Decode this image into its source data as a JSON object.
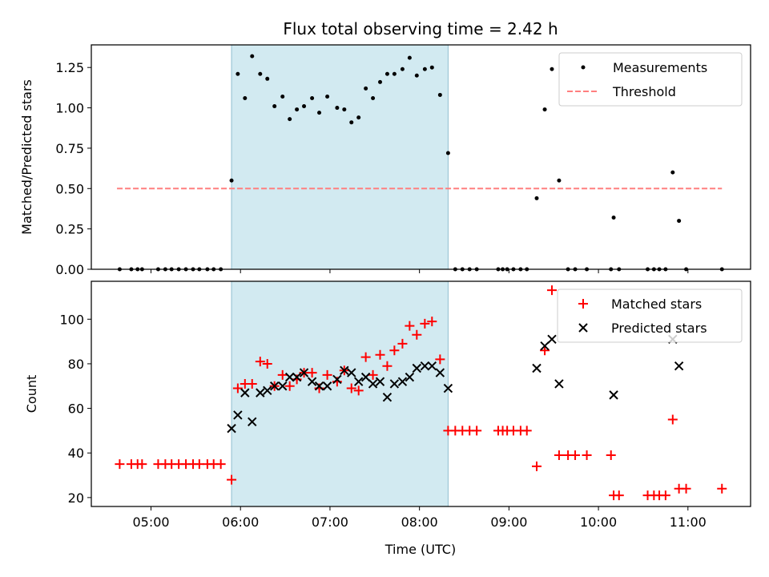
{
  "chart_data": [
    {
      "type": "scatter",
      "title": "Flux total observing time = 2.42 h",
      "ylabel": "Matched/Predicted stars",
      "xlabel": "",
      "xlim": [
        4.333,
        11.7
      ],
      "ylim": [
        0,
        1.39
      ],
      "ytick_labels": [
        "0.00",
        "0.25",
        "0.50",
        "0.75",
        "1.00",
        "1.25"
      ],
      "yticks": [
        0,
        0.25,
        0.5,
        0.75,
        1.0,
        1.25
      ],
      "legend_position": "upper-right",
      "shaded_interval": [
        5.9,
        8.32
      ],
      "shade_color": "#add8e6",
      "series": [
        {
          "name": "Measurements",
          "marker": "dot",
          "color": "#000000",
          "points": [
            [
              4.65,
              0.0
            ],
            [
              4.78,
              0.0
            ],
            [
              4.85,
              0.0
            ],
            [
              4.9,
              0.0
            ],
            [
              5.08,
              0.0
            ],
            [
              5.16,
              0.0
            ],
            [
              5.23,
              0.0
            ],
            [
              5.31,
              0.0
            ],
            [
              5.39,
              0.0
            ],
            [
              5.47,
              0.0
            ],
            [
              5.54,
              0.0
            ],
            [
              5.63,
              0.0
            ],
            [
              5.7,
              0.0
            ],
            [
              5.78,
              0.0
            ],
            [
              5.9,
              0.55
            ],
            [
              5.97,
              1.21
            ],
            [
              6.05,
              1.06
            ],
            [
              6.13,
              1.32
            ],
            [
              6.22,
              1.21
            ],
            [
              6.3,
              1.18
            ],
            [
              6.38,
              1.01
            ],
            [
              6.47,
              1.07
            ],
            [
              6.55,
              0.93
            ],
            [
              6.63,
              0.99
            ],
            [
              6.71,
              1.01
            ],
            [
              6.8,
              1.06
            ],
            [
              6.88,
              0.97
            ],
            [
              6.97,
              1.07
            ],
            [
              7.08,
              1.0
            ],
            [
              7.16,
              0.99
            ],
            [
              7.24,
              0.91
            ],
            [
              7.32,
              0.94
            ],
            [
              7.4,
              1.12
            ],
            [
              7.48,
              1.06
            ],
            [
              7.56,
              1.16
            ],
            [
              7.64,
              1.21
            ],
            [
              7.72,
              1.21
            ],
            [
              7.81,
              1.24
            ],
            [
              7.89,
              1.31
            ],
            [
              7.97,
              1.2
            ],
            [
              8.06,
              1.24
            ],
            [
              8.14,
              1.25
            ],
            [
              8.23,
              1.08
            ],
            [
              8.32,
              0.72
            ],
            [
              8.4,
              0.0
            ],
            [
              8.48,
              0.0
            ],
            [
              8.56,
              0.0
            ],
            [
              8.64,
              0.0
            ],
            [
              8.88,
              0.0
            ],
            [
              8.93,
              0.0
            ],
            [
              8.98,
              0.0
            ],
            [
              9.05,
              0.0
            ],
            [
              9.13,
              0.0
            ],
            [
              9.2,
              0.0
            ],
            [
              9.31,
              0.44
            ],
            [
              9.4,
              0.99
            ],
            [
              9.48,
              1.24
            ],
            [
              9.56,
              0.55
            ],
            [
              9.66,
              0.0
            ],
            [
              9.74,
              0.0
            ],
            [
              9.87,
              0.0
            ],
            [
              10.14,
              0.0
            ],
            [
              10.17,
              0.32
            ],
            [
              10.23,
              0.0
            ],
            [
              10.55,
              0.0
            ],
            [
              10.62,
              0.0
            ],
            [
              10.68,
              0.0
            ],
            [
              10.75,
              0.0
            ],
            [
              10.83,
              0.6
            ],
            [
              10.9,
              0.3
            ],
            [
              10.98,
              0.0
            ],
            [
              11.38,
              0.0
            ]
          ]
        },
        {
          "name": "Threshold",
          "marker": "dashed-line",
          "color": "#ff7f7f",
          "points": [
            [
              4.62,
              0.5
            ],
            [
              11.38,
              0.5
            ]
          ]
        }
      ]
    },
    {
      "type": "scatter",
      "title": "",
      "ylabel": "Count",
      "xlabel": "Time (UTC)",
      "xlim": [
        4.333,
        11.7
      ],
      "ylim": [
        16,
        117
      ],
      "yticks": [
        20,
        40,
        60,
        80,
        100
      ],
      "ytick_labels": [
        "20",
        "40",
        "60",
        "80",
        "100"
      ],
      "xticks": [
        5,
        6,
        7,
        8,
        9,
        10,
        11
      ],
      "xtick_labels": [
        "05:00",
        "06:00",
        "07:00",
        "08:00",
        "09:00",
        "10:00",
        "11:00"
      ],
      "legend_position": "upper-right",
      "shaded_interval": [
        5.9,
        8.32
      ],
      "shade_color": "#add8e6",
      "series": [
        {
          "name": "Matched stars",
          "marker": "plus",
          "color": "#ff0000",
          "points": [
            [
              4.65,
              35
            ],
            [
              4.78,
              35
            ],
            [
              4.85,
              35
            ],
            [
              4.9,
              35
            ],
            [
              5.08,
              35
            ],
            [
              5.16,
              35
            ],
            [
              5.23,
              35
            ],
            [
              5.31,
              35
            ],
            [
              5.39,
              35
            ],
            [
              5.47,
              35
            ],
            [
              5.54,
              35
            ],
            [
              5.63,
              35
            ],
            [
              5.7,
              35
            ],
            [
              5.78,
              35
            ],
            [
              5.9,
              28
            ],
            [
              5.97,
              69
            ],
            [
              6.05,
              71
            ],
            [
              6.13,
              71
            ],
            [
              6.22,
              81
            ],
            [
              6.3,
              80
            ],
            [
              6.38,
              70
            ],
            [
              6.47,
              75
            ],
            [
              6.55,
              70
            ],
            [
              6.63,
              73
            ],
            [
              6.71,
              76
            ],
            [
              6.8,
              76
            ],
            [
              6.88,
              69
            ],
            [
              6.97,
              75
            ],
            [
              7.08,
              72
            ],
            [
              7.16,
              77
            ],
            [
              7.24,
              69
            ],
            [
              7.32,
              68
            ],
            [
              7.4,
              83
            ],
            [
              7.48,
              75
            ],
            [
              7.56,
              84
            ],
            [
              7.64,
              79
            ],
            [
              7.72,
              86
            ],
            [
              7.81,
              89
            ],
            [
              7.89,
              97
            ],
            [
              7.97,
              93
            ],
            [
              8.06,
              98
            ],
            [
              8.14,
              99
            ],
            [
              8.23,
              82
            ],
            [
              8.32,
              50
            ],
            [
              8.4,
              50
            ],
            [
              8.48,
              50
            ],
            [
              8.56,
              50
            ],
            [
              8.64,
              50
            ],
            [
              8.88,
              50
            ],
            [
              8.93,
              50
            ],
            [
              8.98,
              50
            ],
            [
              9.05,
              50
            ],
            [
              9.13,
              50
            ],
            [
              9.2,
              50
            ],
            [
              9.31,
              34
            ],
            [
              9.4,
              86
            ],
            [
              9.48,
              113
            ],
            [
              9.56,
              39
            ],
            [
              9.66,
              39
            ],
            [
              9.74,
              39
            ],
            [
              9.87,
              39
            ],
            [
              10.14,
              39
            ],
            [
              10.17,
              21
            ],
            [
              10.23,
              21
            ],
            [
              10.55,
              21
            ],
            [
              10.62,
              21
            ],
            [
              10.68,
              21
            ],
            [
              10.75,
              21
            ],
            [
              10.83,
              55
            ],
            [
              10.9,
              24
            ],
            [
              10.98,
              24
            ],
            [
              11.38,
              24
            ]
          ]
        },
        {
          "name": "Predicted stars",
          "marker": "x",
          "color": "#000000",
          "points": [
            [
              5.9,
              51
            ],
            [
              5.97,
              57
            ],
            [
              6.05,
              67
            ],
            [
              6.13,
              54
            ],
            [
              6.22,
              67
            ],
            [
              6.3,
              68
            ],
            [
              6.38,
              70
            ],
            [
              6.47,
              70
            ],
            [
              6.55,
              74
            ],
            [
              6.63,
              74
            ],
            [
              6.71,
              76
            ],
            [
              6.8,
              72
            ],
            [
              6.88,
              70
            ],
            [
              6.97,
              70
            ],
            [
              7.08,
              73
            ],
            [
              7.16,
              77
            ],
            [
              7.24,
              76
            ],
            [
              7.32,
              72
            ],
            [
              7.4,
              74
            ],
            [
              7.48,
              71
            ],
            [
              7.56,
              72
            ],
            [
              7.64,
              65
            ],
            [
              7.72,
              71
            ],
            [
              7.81,
              72
            ],
            [
              7.89,
              74
            ],
            [
              7.97,
              78
            ],
            [
              8.06,
              79
            ],
            [
              8.14,
              79
            ],
            [
              8.23,
              76
            ],
            [
              8.32,
              69
            ],
            [
              9.31,
              78
            ],
            [
              9.4,
              88
            ],
            [
              9.48,
              91
            ],
            [
              9.56,
              71
            ],
            [
              10.17,
              66
            ],
            [
              10.83,
              91
            ],
            [
              10.9,
              79
            ]
          ]
        }
      ]
    }
  ]
}
